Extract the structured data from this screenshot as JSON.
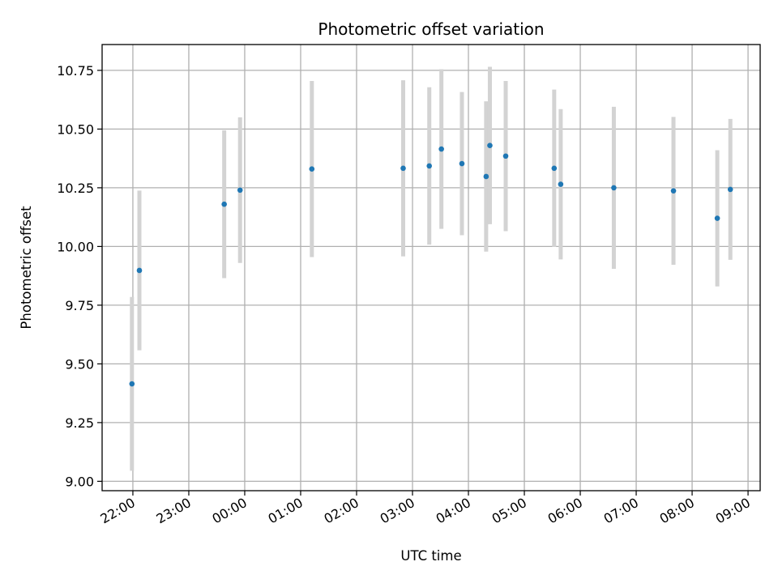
{
  "chart_data": {
    "type": "scatter",
    "title": "Photometric offset variation",
    "xlabel": "UTC time",
    "ylabel": "Photometric offset",
    "xlim": [
      "21:27",
      "09:13"
    ],
    "ylim": [
      8.96,
      10.86
    ],
    "x_ticks": [
      "22:00",
      "23:00",
      "00:00",
      "01:00",
      "02:00",
      "03:00",
      "04:00",
      "05:00",
      "06:00",
      "07:00",
      "08:00",
      "09:00"
    ],
    "y_ticks": [
      9.0,
      9.25,
      9.5,
      9.75,
      10.0,
      10.25,
      10.5,
      10.75
    ],
    "grid": true,
    "marker_color": "#1f77b4",
    "errorbar_color": "#d3d3d3",
    "points": [
      {
        "time": "21:59",
        "y": 9.415,
        "err": 0.37
      },
      {
        "time": "22:07",
        "y": 9.898,
        "err": 0.34
      },
      {
        "time": "23:38",
        "y": 10.18,
        "err": 0.315
      },
      {
        "time": "23:55",
        "y": 10.24,
        "err": 0.31
      },
      {
        "time": "01:12",
        "y": 10.33,
        "err": 0.375
      },
      {
        "time": "02:50",
        "y": 10.333,
        "err": 0.375
      },
      {
        "time": "03:18",
        "y": 10.343,
        "err": 0.335
      },
      {
        "time": "03:31",
        "y": 10.415,
        "err": 0.34
      },
      {
        "time": "03:53",
        "y": 10.353,
        "err": 0.305
      },
      {
        "time": "04:19",
        "y": 10.298,
        "err": 0.32
      },
      {
        "time": "04:23",
        "y": 10.43,
        "err": 0.335
      },
      {
        "time": "04:40",
        "y": 10.385,
        "err": 0.32
      },
      {
        "time": "05:32",
        "y": 10.333,
        "err": 0.335
      },
      {
        "time": "05:39",
        "y": 10.265,
        "err": 0.32
      },
      {
        "time": "06:36",
        "y": 10.25,
        "err": 0.345
      },
      {
        "time": "07:40",
        "y": 10.237,
        "err": 0.315
      },
      {
        "time": "08:27",
        "y": 10.12,
        "err": 0.29
      },
      {
        "time": "08:41",
        "y": 10.243,
        "err": 0.3
      }
    ]
  }
}
